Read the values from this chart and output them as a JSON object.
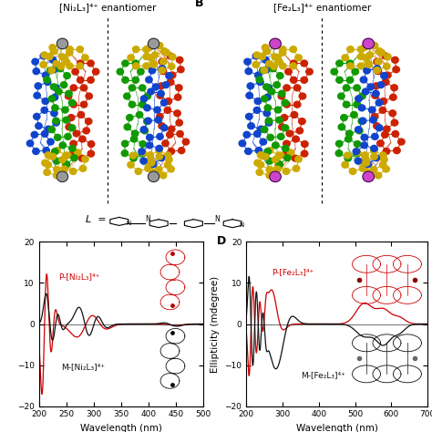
{
  "title_A": "[Ni₂L₃]⁴⁺ enantiomer",
  "title_B": "[Fe₂L₃]⁴⁺ enantiomer",
  "panel_C_label_P": "P-[Ni₂L₃]⁴⁺",
  "panel_C_label_M": "M-[Ni₂L₃]⁴⁺",
  "panel_D_label_P": "P-[Fe₂L₃]⁴⁺",
  "panel_D_label_M": "M-[Fe₂L₃]⁴⁺",
  "label_B": "B",
  "label_D": "D",
  "ylabel_D": "Ellipticity (mdegree)",
  "xlabel": "Wavelength (nm)",
  "ylim": [
    -20,
    20
  ],
  "xlim_C": [
    200,
    500
  ],
  "xlim_D": [
    200,
    700
  ],
  "yticks": [
    -20,
    -10,
    0,
    10,
    20
  ],
  "xticks_C": [
    200,
    250,
    300,
    350,
    400,
    450,
    500
  ],
  "xticks_D": [
    200,
    300,
    400,
    500,
    600,
    700
  ],
  "color_P": "#cc0000",
  "color_M": "#111111",
  "bg_color": "#ffffff",
  "red": "#cc2200",
  "blue": "#1144cc",
  "green": "#119900",
  "yellow": "#ccaa00",
  "ni_metal": "#999999",
  "fe_metal": "#cc44cc"
}
